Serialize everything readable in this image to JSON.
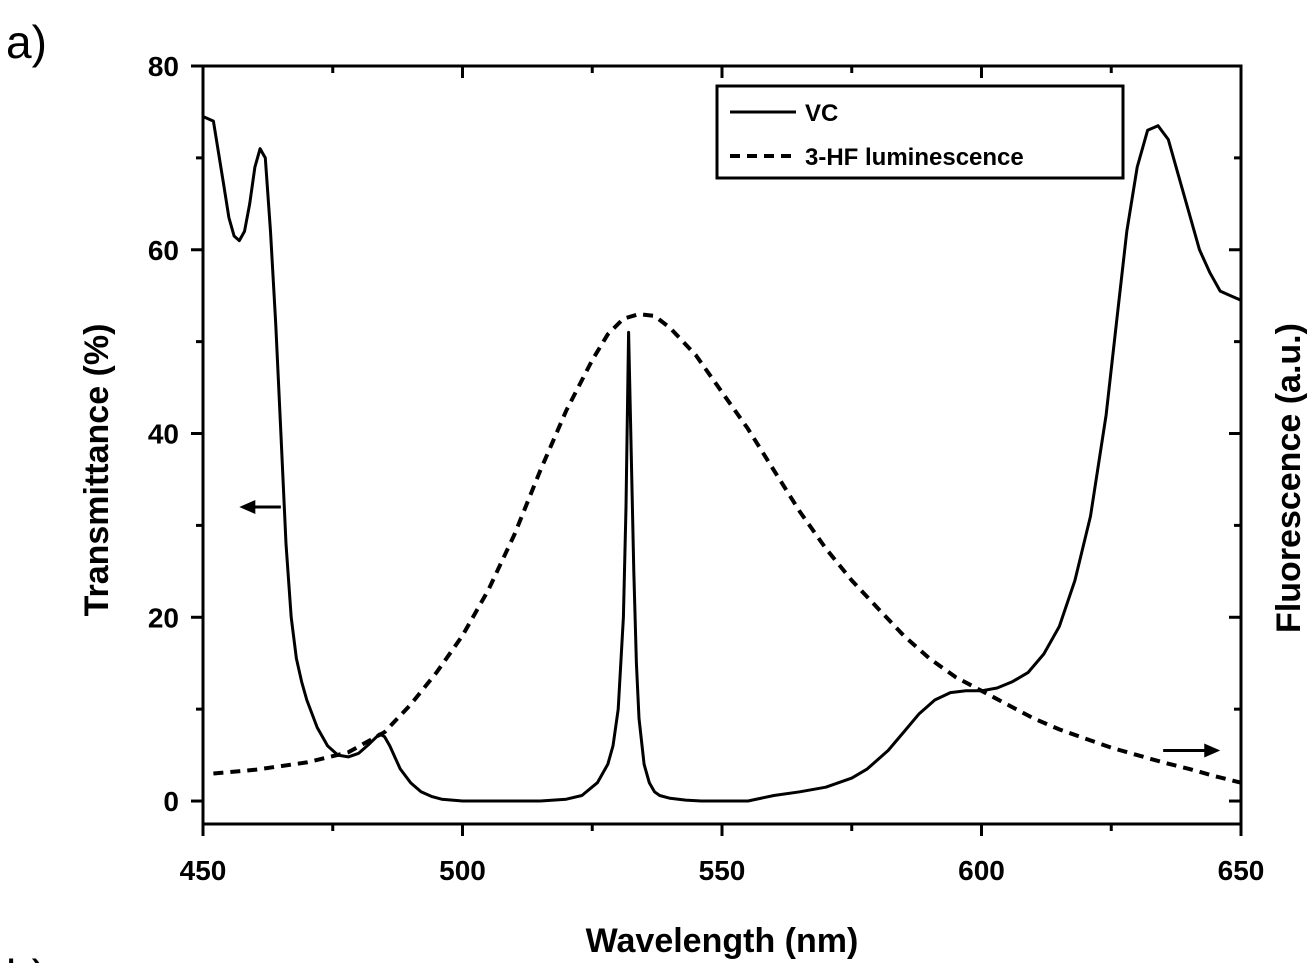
{
  "panel_labels": {
    "top": "a)",
    "bottom": "b)"
  },
  "chart_data": {
    "type": "line",
    "xlabel": "Wavelength (nm)",
    "ylabel_left": "Transmittance (%)",
    "ylabel_right": "Fluorescence (a.u.)",
    "xlim": [
      450,
      650
    ],
    "ylim": [
      -2.5,
      80
    ],
    "x_ticks": [
      450,
      500,
      550,
      600,
      650
    ],
    "y_ticks": [
      0,
      20,
      40,
      60,
      80
    ],
    "grid": false,
    "legend_position": "top-right",
    "annotations": [
      {
        "name": "left-axis-arrow",
        "direction": "left",
        "x": [
          457,
          465
        ],
        "y": 32
      },
      {
        "name": "right-axis-arrow",
        "direction": "right",
        "x": [
          635,
          646
        ],
        "y": 5.5
      }
    ],
    "series": [
      {
        "name": "VC",
        "style": "solid",
        "axis": "left",
        "x": [
          450,
          452,
          454,
          455,
          456,
          457,
          458,
          459,
          460,
          461,
          462,
          463,
          464,
          465,
          466,
          467,
          468,
          469,
          470,
          472,
          474,
          476,
          478,
          480,
          482,
          484,
          485,
          486,
          488,
          490,
          492,
          494,
          496,
          500,
          505,
          510,
          515,
          520,
          523,
          526,
          528,
          529,
          530,
          531,
          531.5,
          532,
          532.5,
          533,
          533.5,
          534,
          535,
          536,
          537,
          538,
          540,
          543,
          546,
          550,
          555,
          560,
          565,
          570,
          575,
          578,
          582,
          585,
          588,
          591,
          594,
          597,
          600,
          603,
          606,
          609,
          612,
          615,
          618,
          621,
          624,
          626,
          628,
          630,
          632,
          634,
          636,
          638,
          640,
          642,
          644,
          646,
          648,
          650
        ],
        "y": [
          74.5,
          74,
          67,
          63.5,
          61.5,
          61,
          62,
          65,
          69,
          71,
          70,
          62,
          52,
          40,
          28,
          20,
          15.5,
          13,
          11,
          8,
          6,
          5,
          4.8,
          5.2,
          6.2,
          7.3,
          7,
          6,
          3.5,
          2,
          1,
          0.5,
          0.2,
          0,
          0,
          0,
          0,
          0.2,
          0.6,
          2,
          4,
          6,
          10,
          20,
          32,
          51,
          38,
          25,
          15,
          9,
          4,
          2,
          1,
          0.6,
          0.3,
          0.1,
          0,
          0,
          0,
          0.6,
          1,
          1.5,
          2.5,
          3.5,
          5.5,
          7.5,
          9.5,
          11,
          11.8,
          12,
          12,
          12.3,
          13,
          14,
          16,
          19,
          24,
          31,
          42,
          52,
          62,
          69,
          73,
          73.5,
          72,
          68,
          64,
          60,
          57.5,
          55.5,
          55,
          54.5
        ]
      },
      {
        "name": "3-HF luminescence",
        "style": "dashed",
        "axis": "right",
        "x": [
          452,
          460,
          470,
          478,
          485,
          490,
          495,
          500,
          505,
          510,
          515,
          520,
          525,
          528,
          531,
          534,
          537,
          540,
          545,
          550,
          555,
          560,
          565,
          570,
          575,
          580,
          585,
          590,
          595,
          600,
          605,
          610,
          615,
          620,
          625,
          630,
          635,
          640,
          645,
          650
        ],
        "y": [
          3,
          3.4,
          4.2,
          5.3,
          7.5,
          10.5,
          14,
          18,
          23,
          29,
          36,
          42.5,
          48,
          50.8,
          52.5,
          53,
          52.8,
          51.5,
          48.5,
          44.5,
          40.5,
          36,
          31.5,
          27.5,
          24,
          21,
          18,
          15.5,
          13.5,
          12,
          10.5,
          9,
          7.8,
          6.8,
          5.8,
          5,
          4.2,
          3.5,
          2.7,
          2
        ]
      }
    ]
  }
}
